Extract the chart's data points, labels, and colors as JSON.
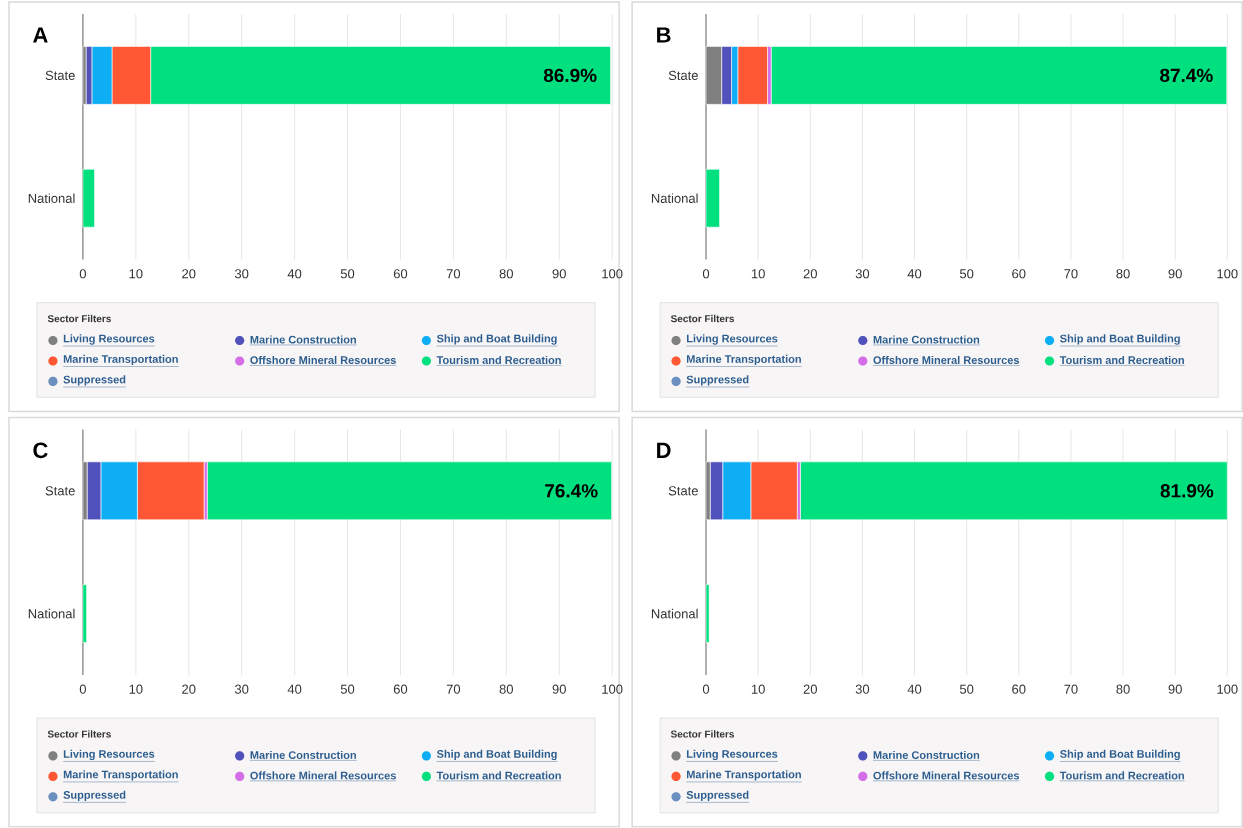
{
  "chart_data": [
    {
      "type": "bar",
      "orientation": "horizontal",
      "stacked": true,
      "title": "A",
      "categories": [
        "State",
        "National"
      ],
      "xlim": [
        0,
        100
      ],
      "xticks": [
        0,
        10,
        20,
        30,
        40,
        50,
        60,
        70,
        80,
        90,
        100
      ],
      "grid": "x",
      "legend": "bottom",
      "legend_title": "Sector Filters",
      "series": [
        {
          "name": "Living Resources",
          "color": "#808080",
          "values": [
            0.6,
            0
          ]
        },
        {
          "name": "Marine Construction",
          "color": "#5151bb",
          "values": [
            1.1,
            0
          ]
        },
        {
          "name": "Ship and Boat Building",
          "color": "#0eaef5",
          "values": [
            3.8,
            0
          ]
        },
        {
          "name": "Marine Transportation",
          "color": "#ff5733",
          "values": [
            7.3,
            0
          ]
        },
        {
          "name": "Offshore Mineral Resources",
          "color": "#d46ee8",
          "values": [
            0,
            0
          ]
        },
        {
          "name": "Tourism and Recreation",
          "color": "#00e07f",
          "values": [
            86.9,
            2.2
          ],
          "value_labels": [
            "86.9%",
            null
          ]
        },
        {
          "name": "Suppressed",
          "color": "#6b8fbf",
          "values": [
            0,
            0
          ]
        }
      ]
    },
    {
      "type": "bar",
      "orientation": "horizontal",
      "stacked": true,
      "title": "B",
      "categories": [
        "State",
        "National"
      ],
      "xlim": [
        0,
        100
      ],
      "xticks": [
        0,
        10,
        20,
        30,
        40,
        50,
        60,
        70,
        80,
        90,
        100
      ],
      "grid": "x",
      "legend": "bottom",
      "legend_title": "Sector Filters",
      "series": [
        {
          "name": "Living Resources",
          "color": "#808080",
          "values": [
            3.0,
            0
          ]
        },
        {
          "name": "Marine Construction",
          "color": "#5151bb",
          "values": [
            1.9,
            0
          ]
        },
        {
          "name": "Ship and Boat Building",
          "color": "#0eaef5",
          "values": [
            1.2,
            0
          ]
        },
        {
          "name": "Marine Transportation",
          "color": "#ff5733",
          "values": [
            5.7,
            0
          ]
        },
        {
          "name": "Offshore Mineral Resources",
          "color": "#d46ee8",
          "values": [
            0.7,
            0
          ]
        },
        {
          "name": "Tourism and Recreation",
          "color": "#00e07f",
          "values": [
            87.4,
            2.6
          ],
          "value_labels": [
            "87.4%",
            null
          ]
        },
        {
          "name": "Suppressed",
          "color": "#6b8fbf",
          "values": [
            0,
            0
          ]
        }
      ]
    },
    {
      "type": "bar",
      "orientation": "horizontal",
      "stacked": true,
      "title": "C",
      "categories": [
        "State",
        "National"
      ],
      "xlim": [
        0,
        100
      ],
      "xticks": [
        0,
        10,
        20,
        30,
        40,
        50,
        60,
        70,
        80,
        90,
        100
      ],
      "grid": "x",
      "legend": "bottom",
      "legend_title": "Sector Filters",
      "series": [
        {
          "name": "Living Resources",
          "color": "#808080",
          "values": [
            0.8,
            0
          ]
        },
        {
          "name": "Marine Construction",
          "color": "#5151bb",
          "values": [
            2.6,
            0
          ]
        },
        {
          "name": "Ship and Boat Building",
          "color": "#0eaef5",
          "values": [
            6.9,
            0
          ]
        },
        {
          "name": "Marine Transportation",
          "color": "#ff5733",
          "values": [
            12.6,
            0
          ]
        },
        {
          "name": "Offshore Mineral Resources",
          "color": "#d46ee8",
          "values": [
            0.6,
            0
          ]
        },
        {
          "name": "Tourism and Recreation",
          "color": "#00e07f",
          "values": [
            76.4,
            0.7
          ],
          "value_labels": [
            "76.4%",
            null
          ]
        },
        {
          "name": "Suppressed",
          "color": "#6b8fbf",
          "values": [
            0,
            0
          ]
        }
      ]
    },
    {
      "type": "bar",
      "orientation": "horizontal",
      "stacked": true,
      "title": "D",
      "categories": [
        "State",
        "National"
      ],
      "xlim": [
        0,
        100
      ],
      "xticks": [
        0,
        10,
        20,
        30,
        40,
        50,
        60,
        70,
        80,
        90,
        100
      ],
      "grid": "x",
      "legend": "bottom",
      "legend_title": "Sector Filters",
      "series": [
        {
          "name": "Living Resources",
          "color": "#808080",
          "values": [
            0.8,
            0
          ]
        },
        {
          "name": "Marine Construction",
          "color": "#5151bb",
          "values": [
            2.4,
            0
          ]
        },
        {
          "name": "Ship and Boat Building",
          "color": "#0eaef5",
          "values": [
            5.4,
            0
          ]
        },
        {
          "name": "Marine Transportation",
          "color": "#ff5733",
          "values": [
            8.9,
            0
          ]
        },
        {
          "name": "Offshore Mineral Resources",
          "color": "#d46ee8",
          "values": [
            0.6,
            0
          ]
        },
        {
          "name": "Tourism and Recreation",
          "color": "#00e07f",
          "values": [
            81.9,
            0.6
          ],
          "value_labels": [
            "81.9%",
            null
          ]
        },
        {
          "name": "Suppressed",
          "color": "#6b8fbf",
          "values": [
            0,
            0
          ]
        }
      ]
    }
  ]
}
